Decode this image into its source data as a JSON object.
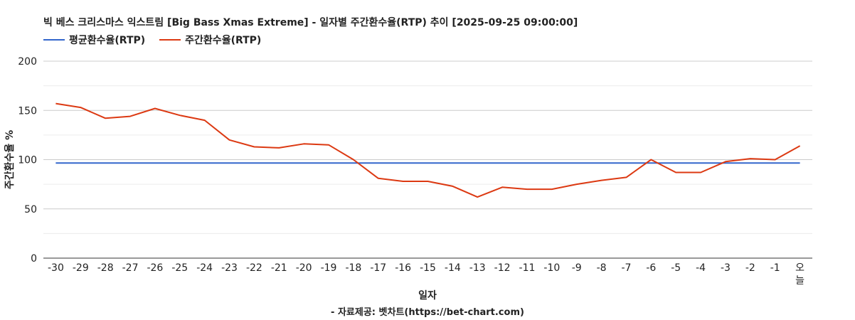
{
  "chart_data": {
    "type": "line",
    "title": "빅 베스 크리스마스 익스트림 [Big Bass Xmas Extreme] - 일자별 주간환수율(RTP) 추이 [2025-09-25 09:00:00]",
    "xlabel": "일자",
    "ylabel": "주간환수율 %",
    "source": "- 자료제공: 벳차트(https://bet-chart.com)",
    "ylim": [
      0,
      200
    ],
    "yticks": [
      0,
      50,
      100,
      150,
      200
    ],
    "grid": true,
    "legend_position": "top-left",
    "categories": [
      "-30",
      "-29",
      "-28",
      "-27",
      "-26",
      "-25",
      "-24",
      "-23",
      "-22",
      "-21",
      "-20",
      "-19",
      "-18",
      "-17",
      "-16",
      "-15",
      "-14",
      "-13",
      "-12",
      "-11",
      "-10",
      "-9",
      "-8",
      "-7",
      "-6",
      "-5",
      "-4",
      "-3",
      "-2",
      "-1",
      "오늘"
    ],
    "series": [
      {
        "name": "평균환수율(RTP)",
        "color": "#3366cc",
        "values": [
          96.5,
          96.5,
          96.5,
          96.5,
          96.5,
          96.5,
          96.5,
          96.5,
          96.5,
          96.5,
          96.5,
          96.5,
          96.5,
          96.5,
          96.5,
          96.5,
          96.5,
          96.5,
          96.5,
          96.5,
          96.5,
          96.5,
          96.5,
          96.5,
          96.5,
          96.5,
          96.5,
          96.5,
          96.5,
          96.5,
          96.5
        ]
      },
      {
        "name": "주간환수율(RTP)",
        "color": "#dc3912",
        "values": [
          157,
          153,
          142,
          144,
          152,
          145,
          140,
          120,
          113,
          112,
          116,
          115,
          100,
          81,
          78,
          78,
          73,
          62,
          72,
          70,
          70,
          75,
          79,
          82,
          100,
          87,
          87,
          98,
          101,
          100,
          114
        ]
      }
    ]
  }
}
